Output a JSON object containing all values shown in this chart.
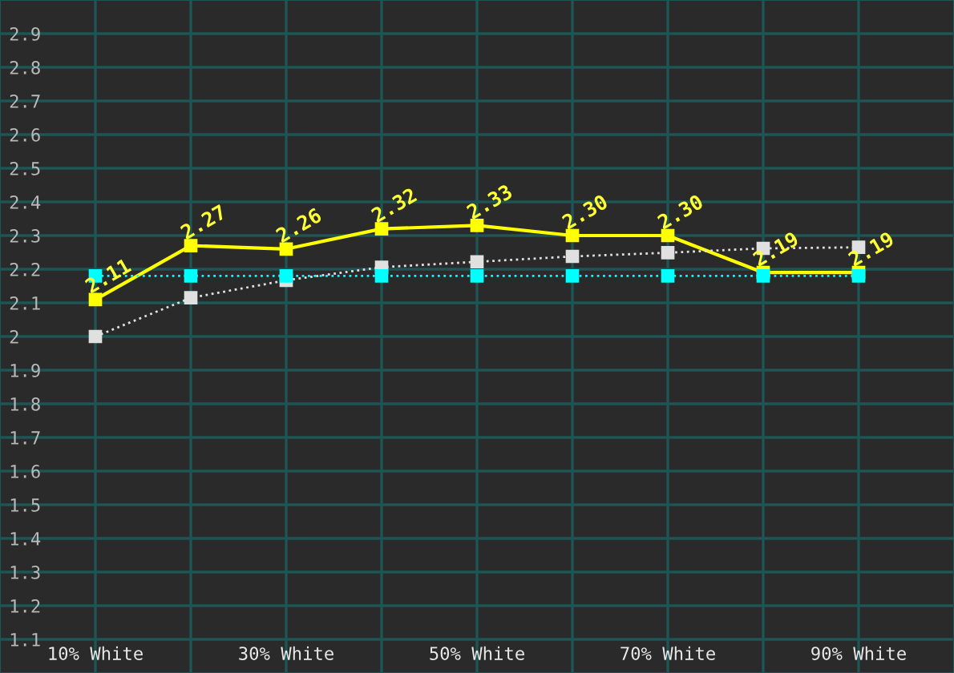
{
  "chart_data": {
    "type": "line",
    "x": [
      10,
      20,
      30,
      40,
      50,
      60,
      70,
      80,
      90
    ],
    "xlim": [
      0,
      100
    ],
    "xticks": [
      {
        "value": 10,
        "label": "10% White"
      },
      {
        "value": 20,
        "label": null
      },
      {
        "value": 30,
        "label": "30% White"
      },
      {
        "value": 40,
        "label": null
      },
      {
        "value": 50,
        "label": "50% White"
      },
      {
        "value": 60,
        "label": null
      },
      {
        "value": 70,
        "label": "70% White"
      },
      {
        "value": 80,
        "label": null
      },
      {
        "value": 90,
        "label": "90% White"
      }
    ],
    "ylim": [
      1.0,
      3.0
    ],
    "yticks": [
      1.1,
      1.2,
      1.3,
      1.4,
      1.5,
      1.6,
      1.7,
      1.8,
      1.9,
      2,
      2.1,
      2.2,
      2.3,
      2.4,
      2.5,
      2.6,
      2.7,
      2.8,
      2.9
    ],
    "grid": true,
    "marker": "square",
    "series": [
      {
        "color": "#00ffff",
        "line_style": "dotted",
        "values": [
          2.18,
          2.18,
          2.18,
          2.18,
          2.18,
          2.18,
          2.18,
          2.18,
          2.18
        ]
      },
      {
        "color": "#e0e0e0",
        "line_style": "dotted",
        "values": [
          2.0,
          2.115,
          2.167,
          2.206,
          2.222,
          2.238,
          2.249,
          2.262,
          2.265
        ]
      },
      {
        "color": "#ffff00",
        "line_style": "solid",
        "data_labels": true,
        "values": [
          2.11,
          2.27,
          2.26,
          2.32,
          2.33,
          2.3,
          2.3,
          2.19,
          2.19
        ],
        "value_labels": [
          "2.11",
          "2.27",
          "2.26",
          "2.32",
          "2.33",
          "2.30",
          "2.30",
          "2.19",
          "2.19"
        ]
      }
    ]
  }
}
